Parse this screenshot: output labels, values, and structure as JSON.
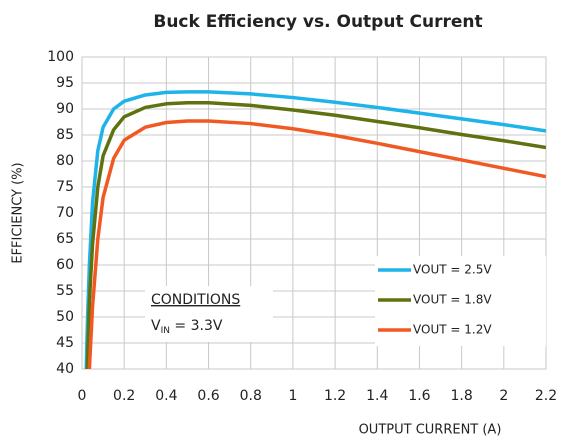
{
  "chart_data": {
    "type": "line",
    "title": "Buck Efficiency vs. Output Current",
    "xlabel": "OUTPUT CURRENT (A)",
    "ylabel": "EFFICIENCY (%)",
    "x": [
      0.02,
      0.025,
      0.035,
      0.05,
      0.075,
      0.1,
      0.15,
      0.2,
      0.3,
      0.4,
      0.5,
      0.6,
      0.8,
      1.0,
      1.2,
      1.4,
      1.6,
      1.8,
      2.0,
      2.2
    ],
    "series": [
      {
        "name": "VOUT = 2.5V",
        "color": "#1eb4ea",
        "values": [
          40,
          48,
          60,
          72,
          82,
          86.5,
          90,
          91.5,
          92.7,
          93.2,
          93.3,
          93.3,
          92.9,
          92.2,
          91.3,
          90.3,
          89.2,
          88.1,
          87,
          85.8
        ]
      },
      {
        "name": "VOUT = 1.8V",
        "color": "#5f7210",
        "values": [
          null,
          40,
          53,
          64,
          75,
          81,
          86,
          88.5,
          90.3,
          91,
          91.2,
          91.2,
          90.7,
          89.8,
          88.8,
          87.6,
          86.4,
          85.1,
          83.9,
          82.6
        ]
      },
      {
        "name": "VOUT = 1.2V",
        "color": "#f05a22",
        "values": [
          null,
          null,
          40,
          52,
          65,
          73,
          80.5,
          84,
          86.5,
          87.4,
          87.7,
          87.7,
          87.2,
          86.2,
          84.9,
          83.4,
          81.8,
          80.2,
          78.6,
          77
        ]
      }
    ],
    "xlim": [
      0,
      2.2
    ],
    "xticks": [
      0,
      0.2,
      0.4,
      0.6,
      0.8,
      1,
      1.2,
      1.4,
      1.6,
      1.8,
      2,
      2.2
    ],
    "ylim": [
      40,
      100
    ],
    "yticks": [
      40,
      45,
      50,
      55,
      60,
      65,
      70,
      75,
      80,
      85,
      90,
      95,
      100
    ],
    "grid": true,
    "legend": "lower right",
    "conditions": {
      "title": "CONDITIONS",
      "base": "V",
      "subscript": "IN",
      "rest": " = 3.3V"
    }
  }
}
